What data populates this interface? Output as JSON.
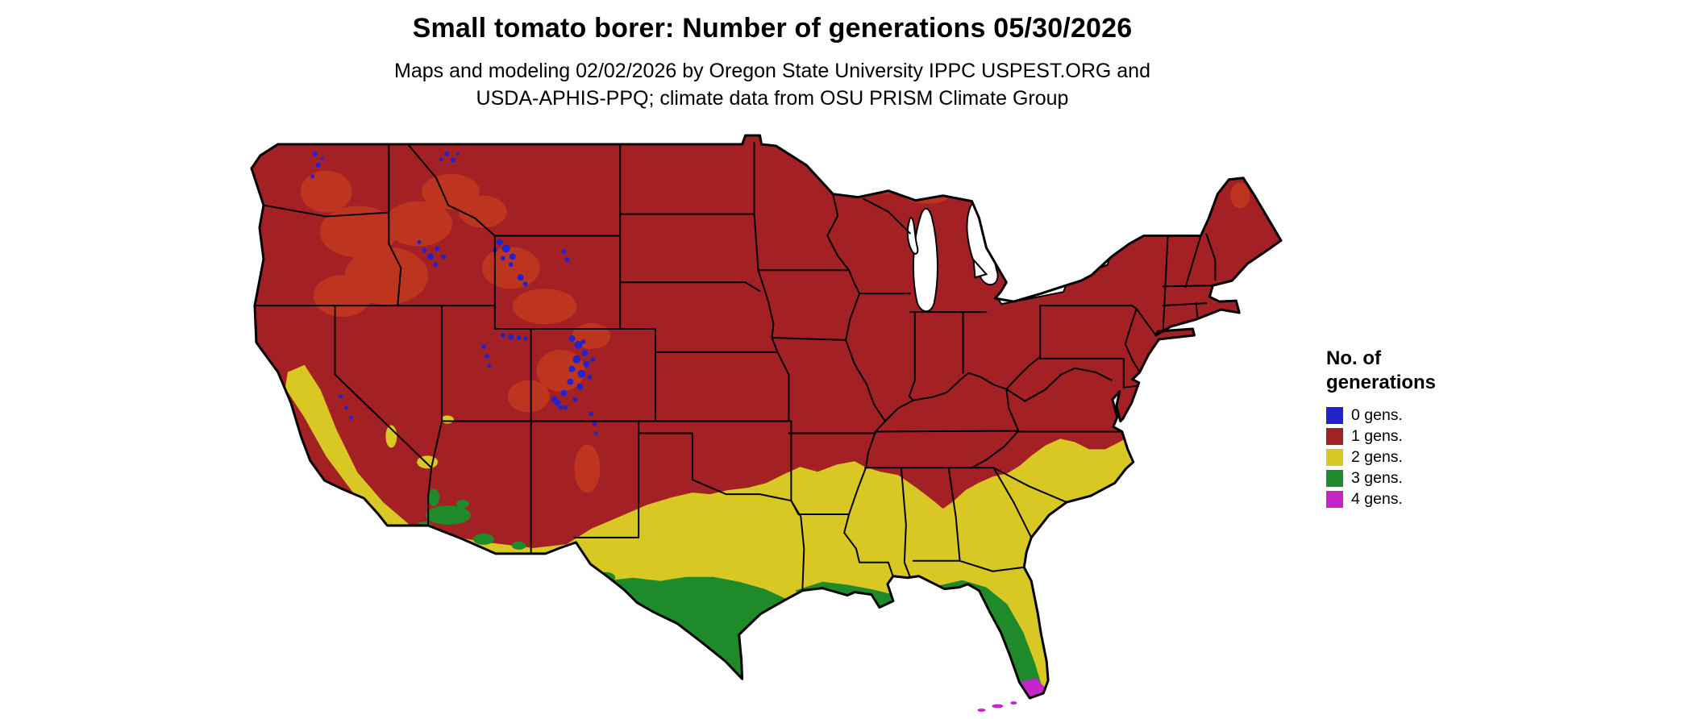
{
  "title": "Small tomato borer: Number of generations 05/30/2026",
  "subtitle": {
    "line1": "Maps and modeling 02/02/2026 by Oregon State University IPPC USPEST.ORG and",
    "line2": "USDA-APHIS-PPQ; climate data from OSU PRISM Climate Group"
  },
  "legend": {
    "title_line1": "No. of",
    "title_line2": "generations",
    "items": [
      {
        "label": "0 gens.",
        "color": "#2323CD"
      },
      {
        "label": "1 gens.",
        "color": "#A32125"
      },
      {
        "label": "2 gens.",
        "color": "#D9C723"
      },
      {
        "label": "3 gens.",
        "color": "#1F8A2A"
      },
      {
        "label": "4 gens.",
        "color": "#C626C9"
      }
    ]
  },
  "map": {
    "extent": "Contiguous United States",
    "colors": {
      "background": "#FFFFFF",
      "borders": "#000000",
      "water": "#FFFFFF",
      "relief_highlight": "#D94A1A"
    },
    "zones": [
      {
        "generations": "0",
        "coverage": "scattered high-elevation Rocky Mountain, Sierra and Cascade areas"
      },
      {
        "generations": "1",
        "coverage": "most of the northern and central United States"
      },
      {
        "generations": "2",
        "coverage": "southern band: central/southern California, desert Southwest, most of Texas, Gulf states, coastal Carolinas"
      },
      {
        "generations": "3",
        "coverage": "south Texas, Gulf coast strip, low-desert Arizona, most of peninsular Florida"
      },
      {
        "generations": "4",
        "coverage": "southern tip of Florida and the Keys"
      }
    ]
  }
}
